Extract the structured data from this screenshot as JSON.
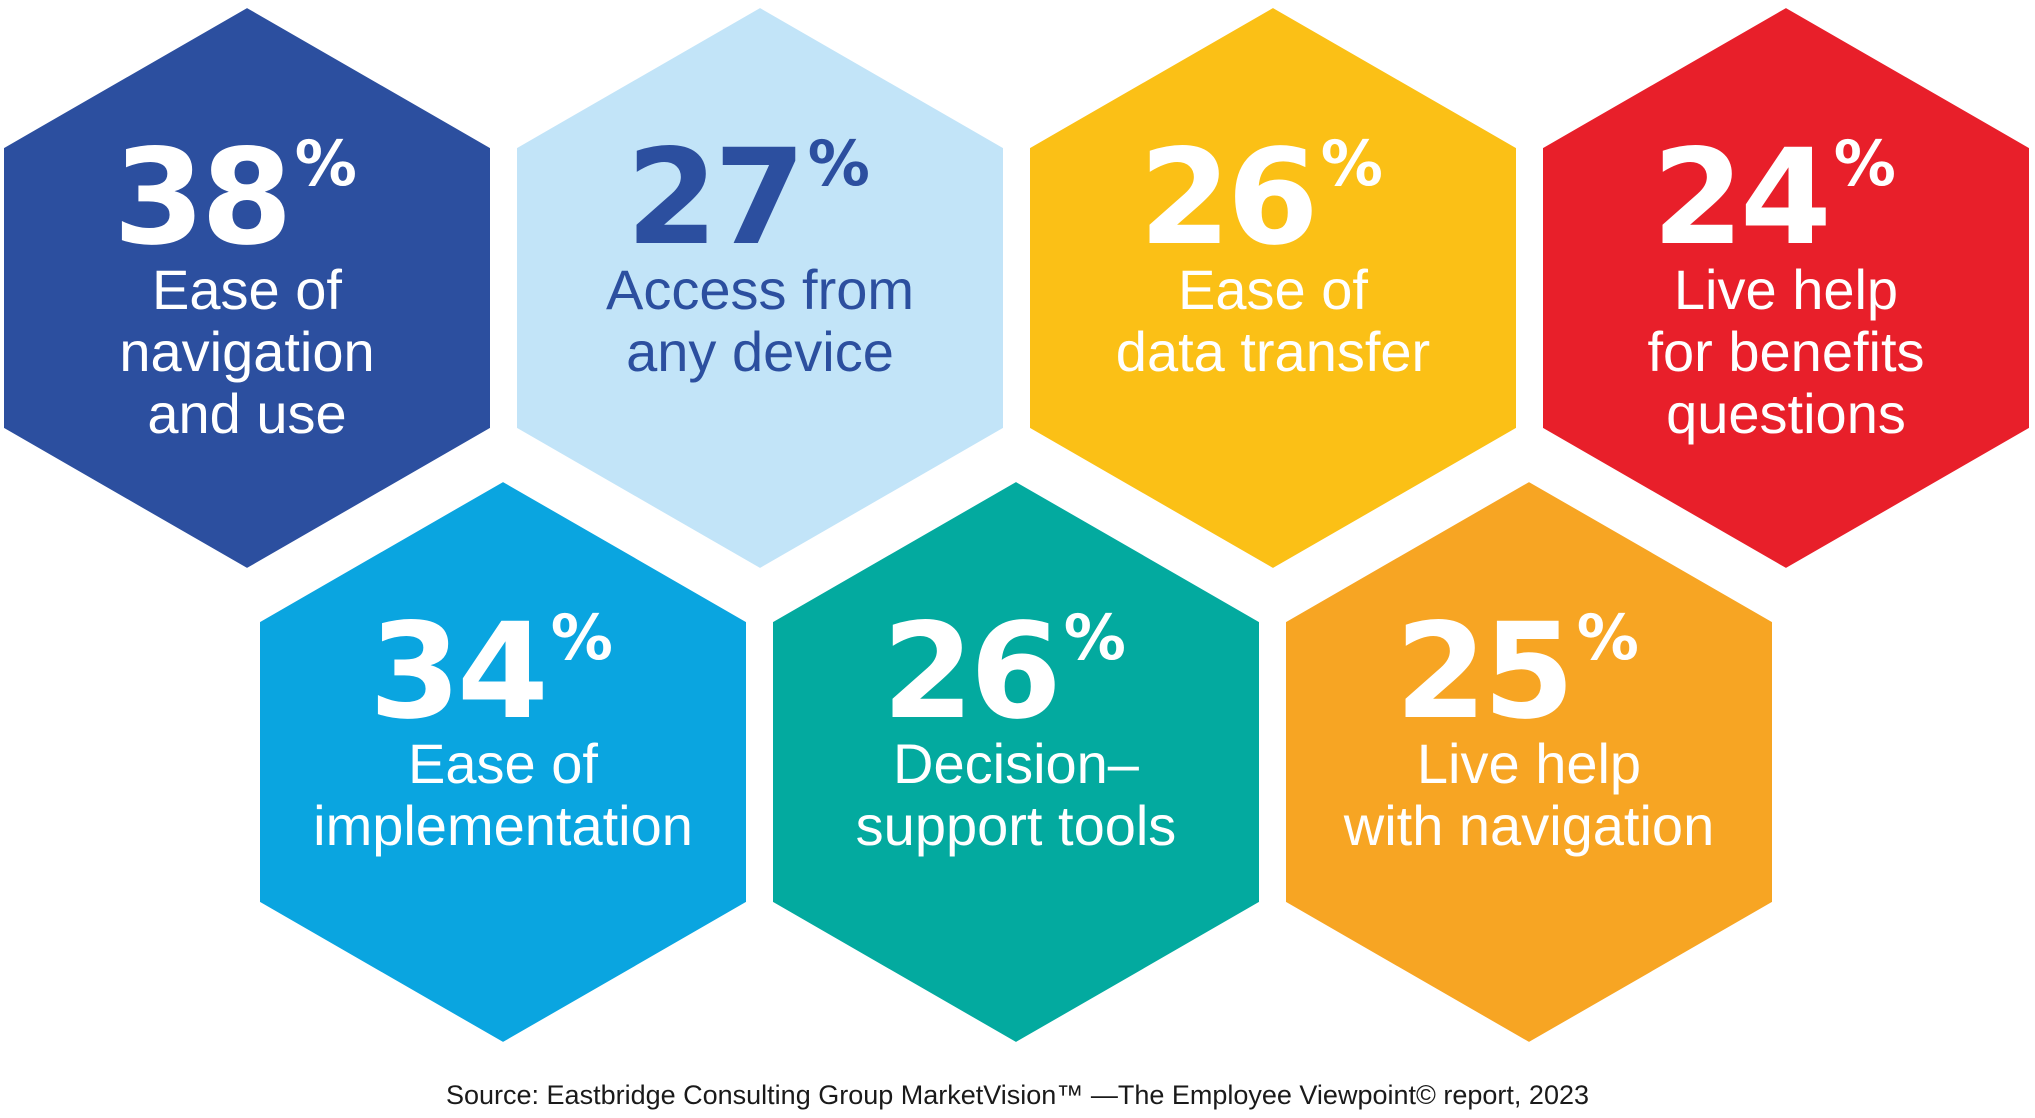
{
  "chart_data": {
    "type": "table",
    "title": "",
    "items": [
      {
        "value": 38,
        "unit": "%",
        "label_lines": [
          "Ease of",
          "navigation",
          "and use"
        ],
        "color": "#2c4f9f",
        "text_color": "#ffffff"
      },
      {
        "value": 27,
        "unit": "%",
        "label_lines": [
          "Access from",
          "any device"
        ],
        "color": "#c2e4f8",
        "text_color": "#2c4f9f"
      },
      {
        "value": 26,
        "unit": "%",
        "label_lines": [
          "Ease of",
          "data transfer"
        ],
        "color": "#fbc016",
        "text_color": "#ffffff"
      },
      {
        "value": 24,
        "unit": "%",
        "label_lines": [
          "Live help",
          "for benefits",
          "questions"
        ],
        "color": "#e81f2a",
        "text_color": "#ffffff"
      },
      {
        "value": 34,
        "unit": "%",
        "label_lines": [
          "Ease of",
          "implementation"
        ],
        "color": "#0aa5e0",
        "text_color": "#ffffff"
      },
      {
        "value": 26,
        "unit": "%",
        "label_lines": [
          "Decision–",
          "support tools"
        ],
        "color": "#03aa9f",
        "text_color": "#ffffff"
      },
      {
        "value": 25,
        "unit": "%",
        "label_lines": [
          "Live help",
          "with navigation"
        ],
        "color": "#f7a523",
        "text_color": "#ffffff"
      }
    ]
  },
  "source": "Source: Eastbridge Consulting Group MarketVision™ —The Employee Viewpoint© report, 2023"
}
